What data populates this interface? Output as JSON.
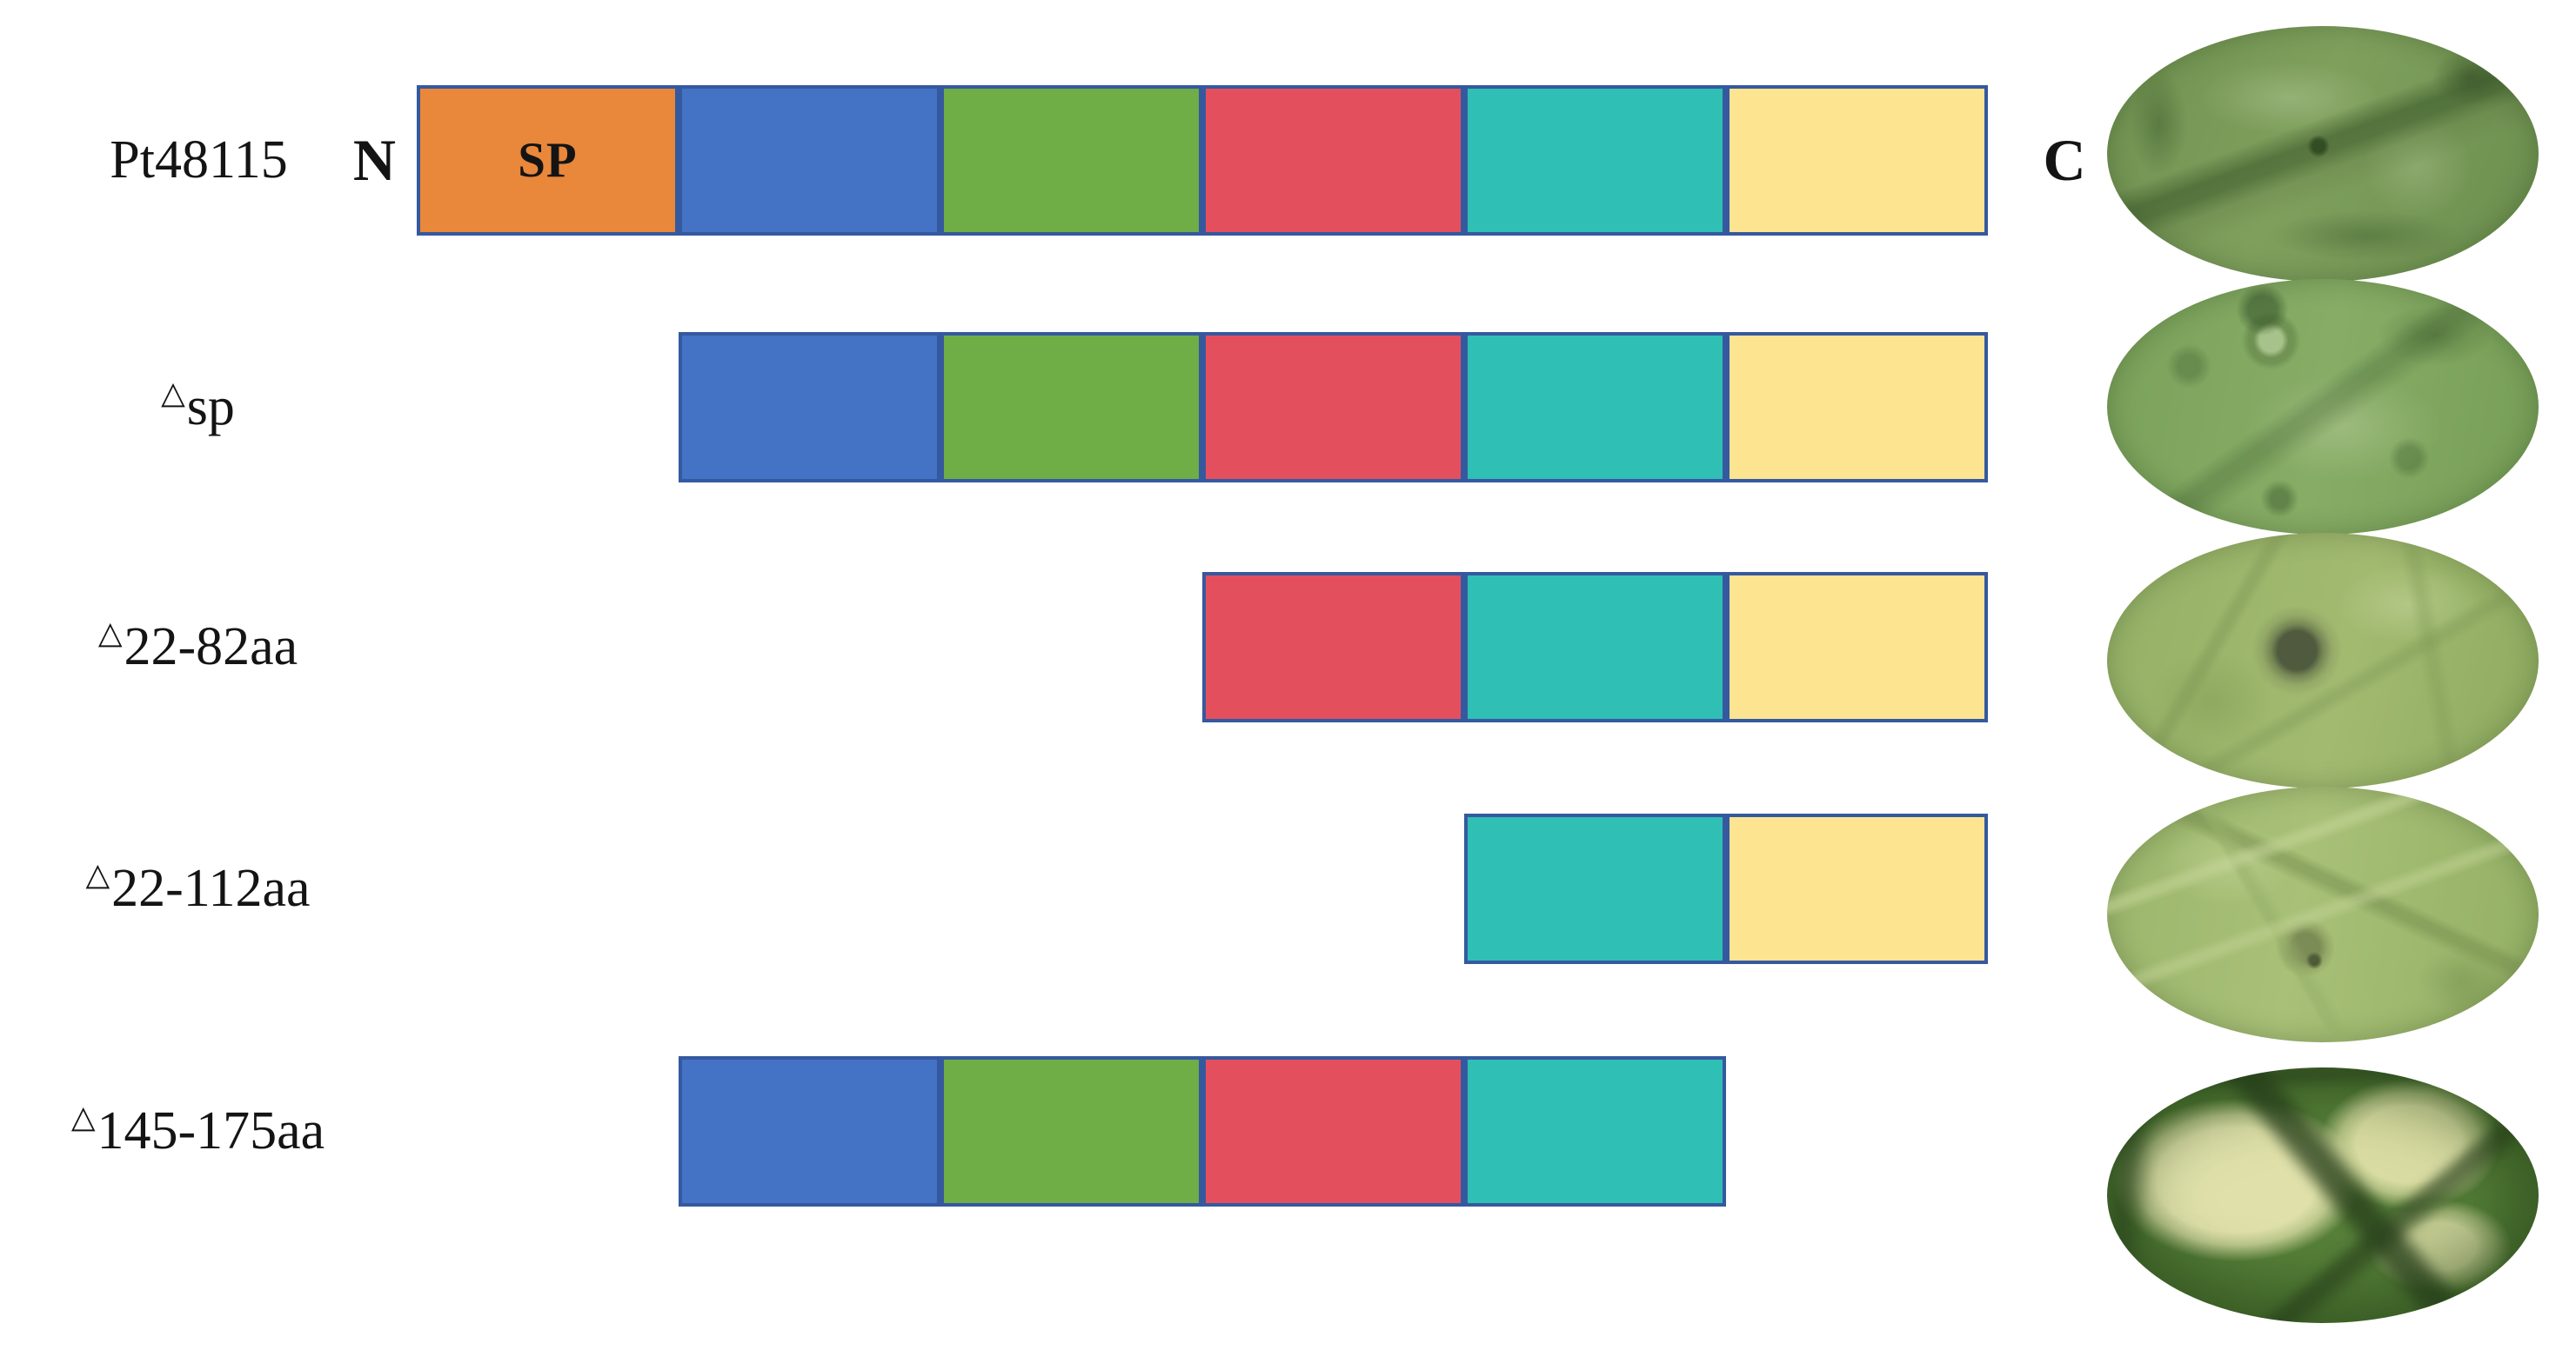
{
  "figure": {
    "n_terminus_label": "N",
    "c_terminus_label": "C",
    "border_color": "#35599F",
    "text_color": "#141414",
    "background_color": "#FFFFFF",
    "domain_order": [
      "sp",
      "d1",
      "d2",
      "d3",
      "d4",
      "d5"
    ],
    "domains": {
      "sp": {
        "name": "signal-peptide-orange",
        "label": "SP",
        "color": "#E9873B"
      },
      "d1": {
        "name": "region-blue",
        "color": "#4472C4"
      },
      "d2": {
        "name": "region-green",
        "color": "#6FAD47"
      },
      "d3": {
        "name": "region-red",
        "color": "#E44F5E"
      },
      "d4": {
        "name": "region-teal",
        "color": "#2FBFB4"
      },
      "d5": {
        "name": "region-yellow",
        "color": "#FDE491"
      }
    },
    "rows": [
      {
        "label_prefix": "",
        "label": "Pt48115",
        "segments": [
          "sp",
          "d1",
          "d2",
          "d3",
          "d4",
          "d5"
        ],
        "leaf": "leaf-1",
        "leaf_appearance": "dark green leaf with diagonal vein, no lesion"
      },
      {
        "label_prefix": "△",
        "label": "sp",
        "segments": [
          "d1",
          "d2",
          "d3",
          "d4",
          "d5"
        ],
        "leaf": "leaf-2",
        "leaf_appearance": "green mottled leaf with tiny dark flecks, no lesion"
      },
      {
        "label_prefix": "△",
        "label": "22-82aa",
        "segments": [
          "d3",
          "d4",
          "d5"
        ],
        "leaf": "leaf-3",
        "leaf_appearance": "yellow-green leaf with one small dark spot"
      },
      {
        "label_prefix": "△",
        "label": "22-112aa",
        "segments": [
          "d4",
          "d5"
        ],
        "leaf": "leaf-4",
        "leaf_appearance": "light green veined leaf with small dark spot"
      },
      {
        "label_prefix": "△",
        "label": "145-175aa",
        "segments": [
          "d1",
          "d2",
          "d3",
          "d4"
        ],
        "leaf": "leaf-5",
        "leaf_appearance": "leaf with large pale necrotic patches bordered by dark veins"
      }
    ]
  }
}
